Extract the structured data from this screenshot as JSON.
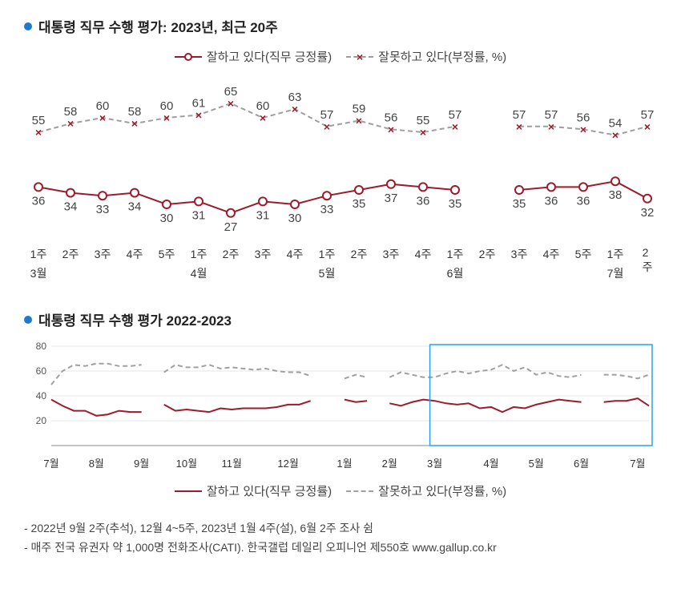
{
  "chart1": {
    "title": "대통령 직무 수행 평가: 2023년, 최근 20주",
    "legend": {
      "positive": "잘하고 있다(직무 긍정률)",
      "negative": "잘못하고 있다(부정률, %)"
    },
    "colors": {
      "bullet": "#1f77d0",
      "positive_line": "#9b1c2a",
      "negative_line": "#9e9e9e",
      "marker_o_border": "#9b1c2a",
      "marker_o_fill": "#ffffff",
      "marker_x": "#9b1c2a",
      "value_label": "#444444",
      "axis_label": "#333333",
      "background": "#ffffff"
    },
    "style": {
      "line_width": 2,
      "dash_pattern": "6,4",
      "marker_radius": 5,
      "label_fontsize": 15,
      "axis_fontsize": 14,
      "gap_index": 14
    },
    "ylim": [
      20,
      70
    ],
    "weeks": [
      "1주",
      "2주",
      "3주",
      "4주",
      "5주",
      "1주",
      "2주",
      "3주",
      "4주",
      "1주",
      "2주",
      "3주",
      "4주",
      "1주",
      "2주",
      "3주",
      "4주",
      "5주",
      "1주",
      "2주"
    ],
    "month_markers": [
      {
        "index": 0,
        "label": "3월"
      },
      {
        "index": 5,
        "label": "4월"
      },
      {
        "index": 9,
        "label": "5월"
      },
      {
        "index": 13,
        "label": "6월"
      },
      {
        "index": 18,
        "label": "7월"
      }
    ],
    "positive": [
      36,
      34,
      33,
      34,
      30,
      31,
      27,
      31,
      30,
      33,
      35,
      37,
      36,
      35,
      null,
      35,
      36,
      36,
      38,
      32
    ],
    "negative": [
      55,
      58,
      60,
      58,
      60,
      61,
      65,
      60,
      63,
      57,
      59,
      56,
      55,
      57,
      null,
      57,
      57,
      56,
      54,
      57
    ]
  },
  "chart2": {
    "title": "대통령 직무 수행 평가 2022-2023",
    "legend": {
      "positive": "잘하고 있다(직무 긍정률)",
      "negative": "잘못하고 있다(부정률, %)"
    },
    "colors": {
      "positive_line": "#9b1c2a",
      "negative_line": "#a0a0a0",
      "gridline": "#e5e5e5",
      "axis_label": "#333333",
      "highlight_box": "#2aa1e8",
      "background": "#ffffff"
    },
    "style": {
      "line_width": 2,
      "dash_pattern": "6,4",
      "axis_fontsize": 13,
      "ytick_fontsize": 12
    },
    "ylim": [
      0,
      80
    ],
    "ytick_step": 20,
    "month_segments": [
      {
        "label": "7월",
        "weeks": 4,
        "positive": [
          37,
          32,
          28,
          28
        ],
        "negative": [
          49,
          60,
          65,
          64
        ]
      },
      {
        "label": "8월",
        "weeks": 4,
        "positive": [
          24,
          25,
          28,
          27
        ],
        "negative": [
          66,
          66,
          64,
          64
        ]
      },
      {
        "label": "9월",
        "weeks": 4,
        "positive": [
          27,
          null,
          33,
          28
        ],
        "negative": [
          65,
          null,
          59,
          65
        ]
      },
      {
        "label": "10월",
        "weeks": 4,
        "positive": [
          29,
          28,
          27,
          30
        ],
        "negative": [
          63,
          63,
          65,
          62
        ]
      },
      {
        "label": "11월",
        "weeks": 5,
        "positive": [
          29,
          30,
          30,
          30,
          31
        ],
        "negative": [
          63,
          62,
          61,
          62,
          60
        ]
      },
      {
        "label": "12월",
        "weeks": 5,
        "positive": [
          33,
          33,
          36,
          null,
          null
        ],
        "negative": [
          59,
          59,
          56,
          null,
          null
        ]
      },
      {
        "label": "1월",
        "weeks": 4,
        "positive": [
          37,
          35,
          36,
          null
        ],
        "negative": [
          54,
          57,
          55,
          null
        ]
      },
      {
        "label": "2월",
        "weeks": 4,
        "positive": [
          34,
          32,
          35,
          37
        ],
        "negative": [
          55,
          59,
          57,
          55
        ]
      },
      {
        "label": "3월",
        "weeks": 5,
        "positive": [
          36,
          34,
          33,
          34,
          30
        ],
        "negative": [
          55,
          58,
          60,
          58,
          60
        ]
      },
      {
        "label": "4월",
        "weeks": 4,
        "positive": [
          31,
          27,
          31,
          30
        ],
        "negative": [
          61,
          65,
          60,
          63
        ]
      },
      {
        "label": "5월",
        "weeks": 4,
        "positive": [
          33,
          35,
          37,
          36
        ],
        "negative": [
          57,
          59,
          56,
          55
        ]
      },
      {
        "label": "6월",
        "weeks": 5,
        "positive": [
          35,
          null,
          35,
          36,
          36
        ],
        "negative": [
          57,
          null,
          57,
          57,
          56
        ]
      },
      {
        "label": "7월",
        "weeks": 2,
        "positive": [
          38,
          32
        ],
        "negative": [
          54,
          57
        ]
      }
    ],
    "highlight": {
      "start_month_index": 8,
      "end_month_index": 12
    }
  },
  "footnotes": [
    "- 2022년 9월 2주(추석), 12월 4~5주, 2023년 1월 4주(설), 6월 2주 조사 쉼",
    "- 매주 전국 유권자 약 1,000명 전화조사(CATI). 한국갤럽 데일리 오피니언 제550호 www.gallup.co.kr"
  ]
}
